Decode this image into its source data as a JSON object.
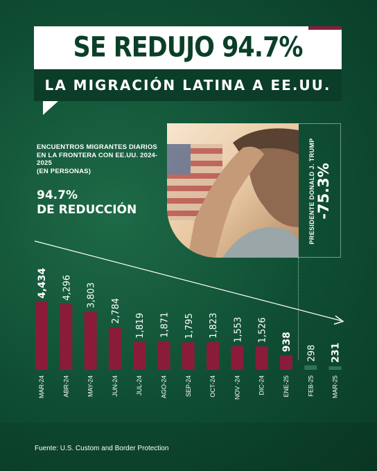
{
  "header": {
    "title": "SE REDUJO 94.7%",
    "subtitle": "LA MIGRACIÓN LATINA A EE.UU."
  },
  "intro": {
    "description": "ENCUENTROS MIGRANTES DIARIOS EN LA FRONTERA CON EE.UU. 2024-2025",
    "description_units": "(EN PERSONAS)",
    "reduction_value": "94.7%",
    "reduction_label": "DE REDUCCIÓN"
  },
  "trump": {
    "label": "PRESIDENTE DONALD J. TRUMP",
    "change": "-75.3%"
  },
  "source": "Fuente: U.S. Custom and Border Protection",
  "colors": {
    "bar_primary": "#8a1c3a",
    "bar_after": "#2f7357",
    "background": "#0f4d33"
  },
  "chart_data": {
    "type": "bar",
    "categories": [
      "MAR-24",
      "ABR-24",
      "MAY-24",
      "JUN-24",
      "JUL-24",
      "AGO-24",
      "SEP-24",
      "OCT-24",
      "NOV -24",
      "DIC-24",
      "ENE-25",
      "FEB-25",
      "MAR-25"
    ],
    "values": [
      4434,
      4296,
      3803,
      2784,
      1819,
      1871,
      1795,
      1823,
      1553,
      1526,
      938,
      298,
      231
    ],
    "value_labels": [
      "4,434",
      "4,296",
      "3,803",
      "2,784",
      "1,819",
      "1,871",
      "1,795",
      "1,823",
      "1,553",
      "1,526",
      "938",
      "298",
      "231"
    ],
    "highlighted_labels": [
      "MAR-24",
      "ENE-25",
      "MAR-25"
    ],
    "ylim": [
      0,
      4434
    ],
    "grid": false,
    "legend": "none",
    "annotation": "downward trend arrow",
    "title": "",
    "xlabel": "",
    "ylabel": ""
  }
}
